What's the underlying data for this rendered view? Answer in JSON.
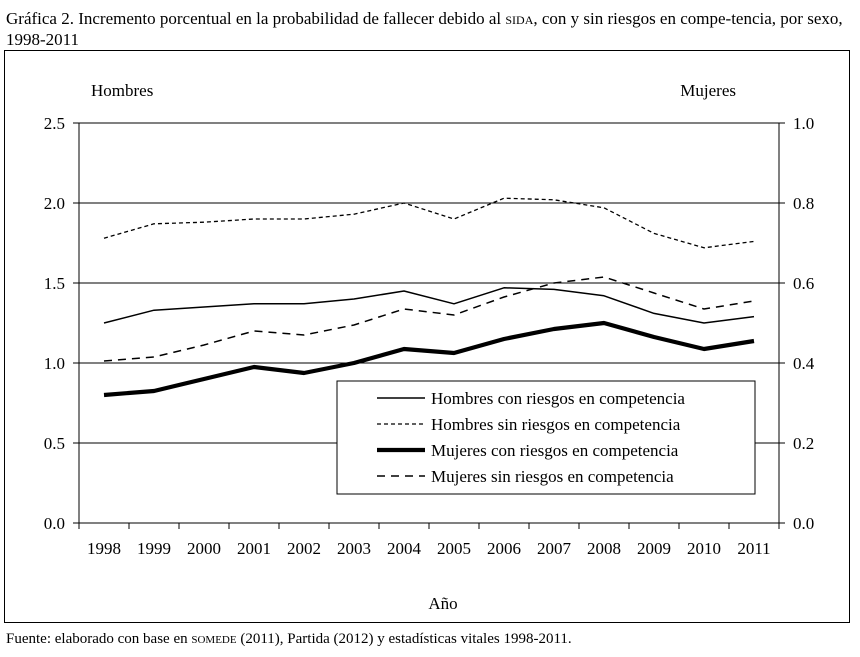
{
  "caption": {
    "part1": "Gráfica 2. Incremento porcentual en la probabilidad de fallecer debido al ",
    "sida": "sida",
    "part2": ", con y sin riesgos en compe-tencia, por sexo, 1998-2011"
  },
  "source": {
    "part1": "Fuente: elaborado con base en ",
    "somede": "somede",
    "part2": " (2011), Partida (2012) y estadísticas vitales 1998-2011."
  },
  "chart_data": {
    "type": "line",
    "xlabel": "Año",
    "left_axis_title": "Hombres",
    "right_axis_title": "Mujeres",
    "ylim_left": [
      0,
      2.5
    ],
    "ylim_right": [
      0,
      1.0
    ],
    "yticks_left": [
      "0.0",
      "0.5",
      "1.0",
      "1.5",
      "2.0",
      "2.5"
    ],
    "yticks_right": [
      "0.0",
      "0.2",
      "0.4",
      "0.6",
      "0.8",
      "1.0"
    ],
    "categories": [
      "1998",
      "1999",
      "2000",
      "2001",
      "2002",
      "2003",
      "2004",
      "2005",
      "2006",
      "2007",
      "2008",
      "2009",
      "2010",
      "2011"
    ],
    "legend_position": "bottom-right",
    "series": [
      {
        "name": "Hombres con riesgos en competencia",
        "axis": "left",
        "style": "solid",
        "values": [
          1.25,
          1.33,
          1.35,
          1.37,
          1.37,
          1.4,
          1.45,
          1.37,
          1.47,
          1.46,
          1.42,
          1.31,
          1.25,
          1.29
        ]
      },
      {
        "name": "Hombres sin riesgos en competencia",
        "axis": "left",
        "style": "dotted",
        "values": [
          1.78,
          1.87,
          1.88,
          1.9,
          1.9,
          1.93,
          2.0,
          1.9,
          2.03,
          2.02,
          1.97,
          1.81,
          1.72,
          1.76
        ]
      },
      {
        "name": "Mujeres con riesgos en competencia",
        "axis": "right",
        "style": "thick",
        "values": [
          0.32,
          0.33,
          0.36,
          0.39,
          0.375,
          0.4,
          0.435,
          0.425,
          0.46,
          0.485,
          0.5,
          0.465,
          0.435,
          0.455
        ]
      },
      {
        "name": "Mujeres sin riesgos en competencia",
        "axis": "right",
        "style": "dashed",
        "values": [
          0.405,
          0.415,
          0.445,
          0.48,
          0.47,
          0.495,
          0.535,
          0.52,
          0.565,
          0.6,
          0.615,
          0.575,
          0.535,
          0.555
        ]
      }
    ]
  }
}
